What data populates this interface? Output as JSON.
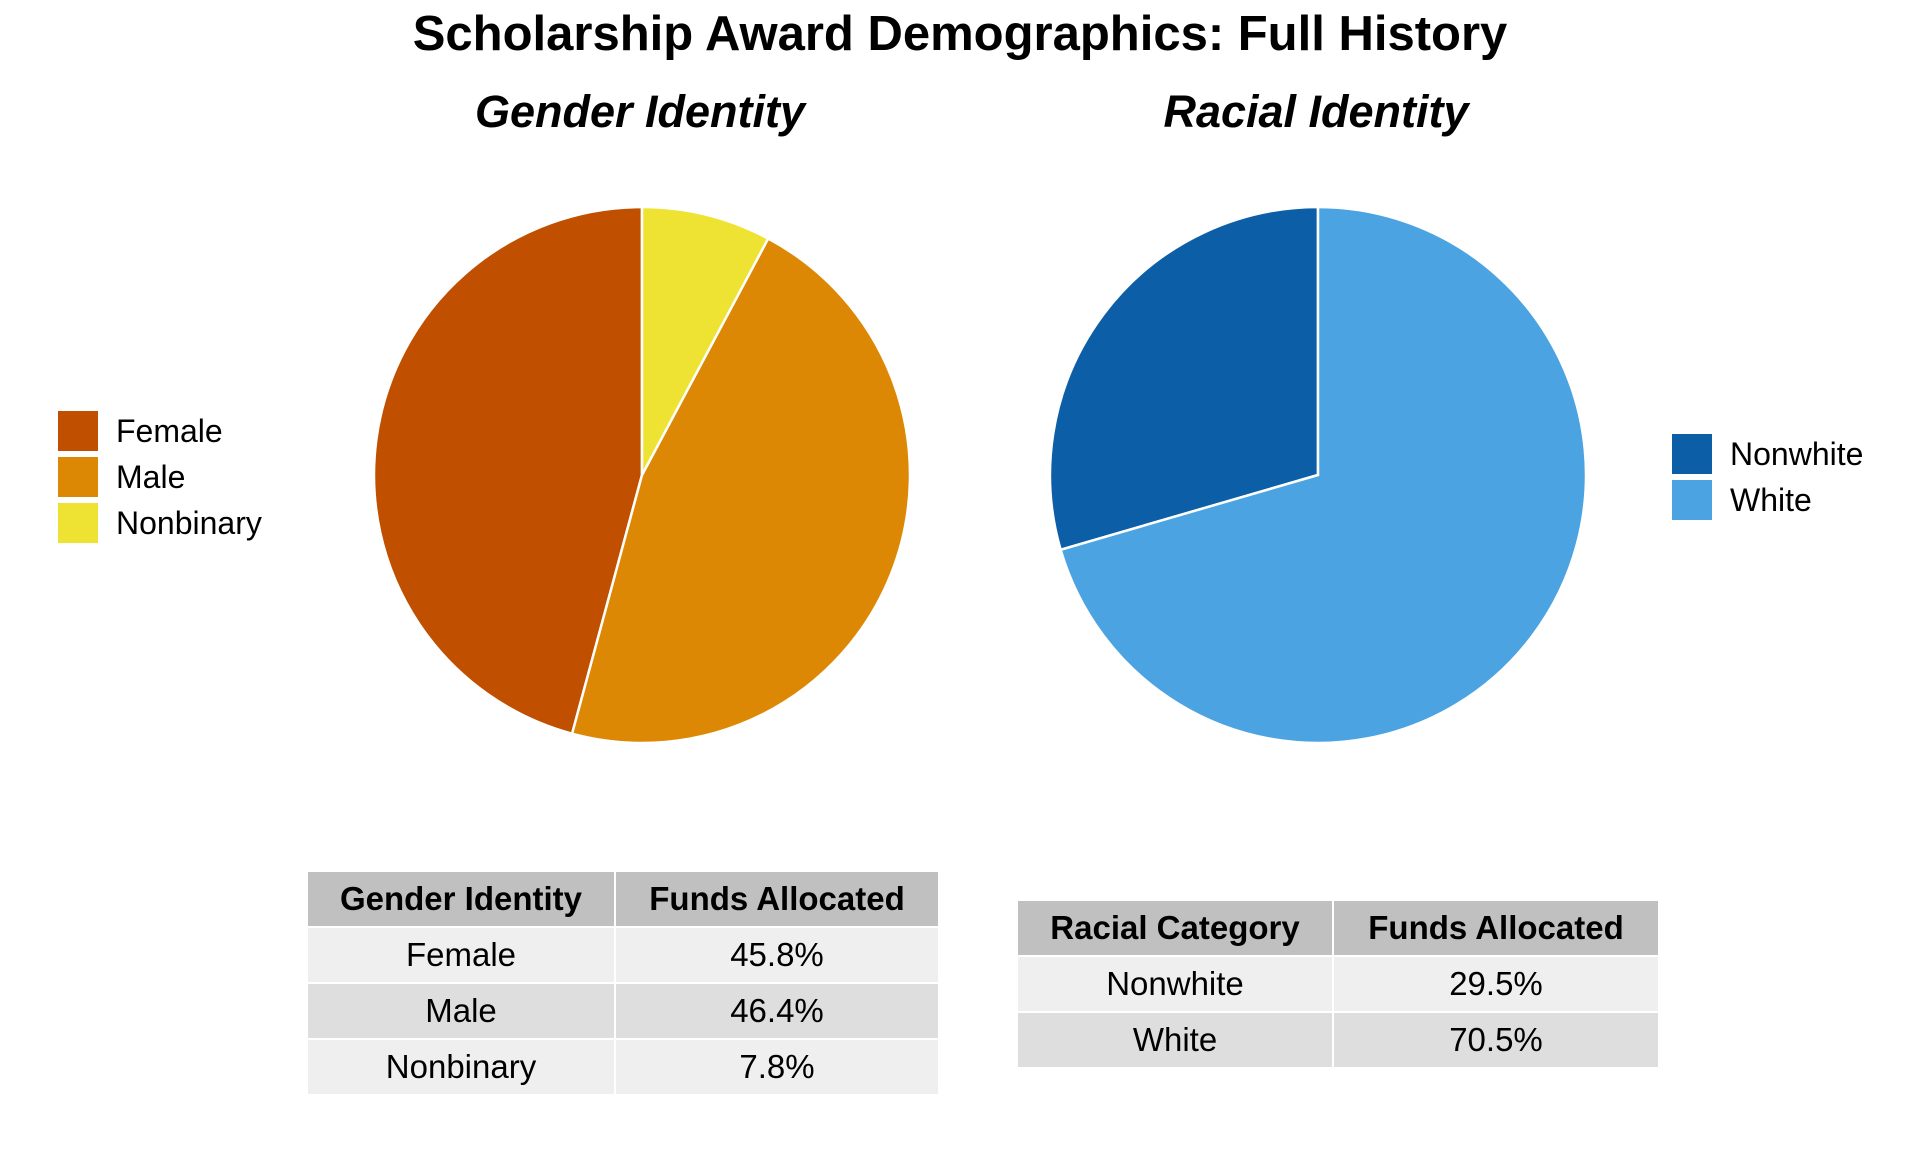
{
  "title": "Scholarship Award Demographics: Full History",
  "chart_data": [
    {
      "type": "pie",
      "title": "Gender Identity",
      "categories": [
        "Female",
        "Male",
        "Nonbinary"
      ],
      "values": [
        45.8,
        46.4,
        7.8
      ],
      "colors": [
        "#C05000",
        "#DD8805",
        "#EEE332"
      ],
      "legend": "left",
      "start": "top, counterclockwise"
    },
    {
      "type": "pie",
      "title": "Racial Identity",
      "categories": [
        "Nonwhite",
        "White"
      ],
      "values": [
        29.5,
        70.5
      ],
      "colors": [
        "#0C5EA6",
        "#4CA3E2"
      ],
      "legend": "right",
      "start": "top, counterclockwise"
    }
  ],
  "tables": [
    {
      "headers": [
        "Gender Identity",
        "Funds Allocated"
      ],
      "rows": [
        [
          "Female",
          "45.8%"
        ],
        [
          "Male",
          "46.4%"
        ],
        [
          "Nonbinary",
          "7.8%"
        ]
      ]
    },
    {
      "headers": [
        "Racial Category",
        "Funds Allocated"
      ],
      "rows": [
        [
          "Nonwhite",
          "29.5%"
        ],
        [
          "White",
          "70.5%"
        ]
      ]
    }
  ]
}
